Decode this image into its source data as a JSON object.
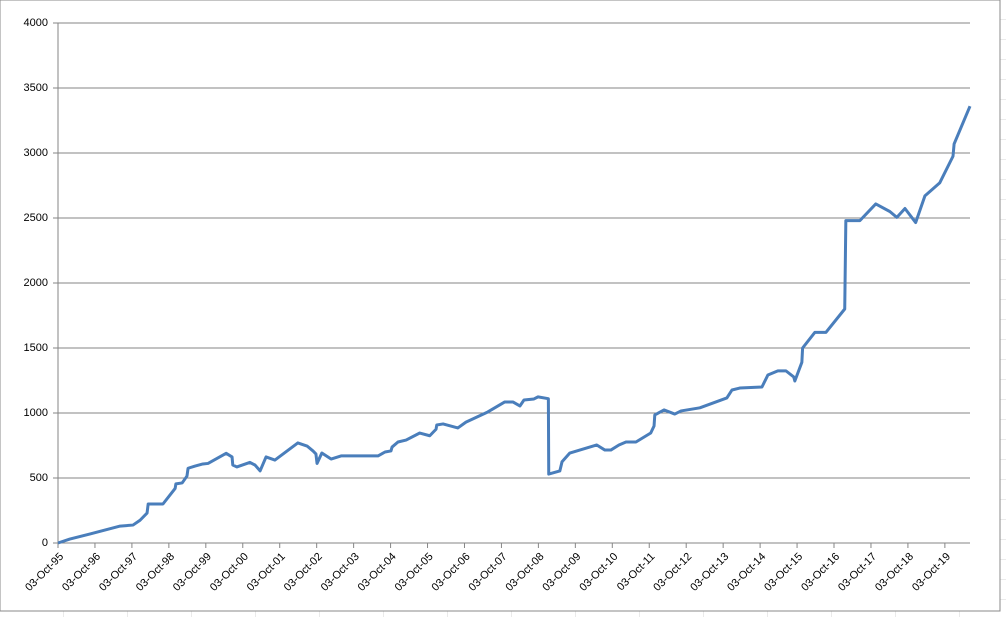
{
  "chart_data": {
    "type": "line",
    "x": [
      1995.75,
      1996.07,
      1996.62,
      1997.43,
      1997.78,
      1997.97,
      1998.16,
      1998.19,
      1998.24,
      1998.59,
      1998.92,
      1998.94,
      1999.11,
      1999.24,
      1999.27,
      1999.46,
      1999.67,
      1999.81,
      2000.3,
      2000.46,
      2000.48,
      2000.59,
      2000.94,
      2001.08,
      2001.22,
      2001.38,
      2001.62,
      2002.24,
      2002.49,
      2002.65,
      2002.73,
      2002.76,
      2002.89,
      2003.14,
      2003.41,
      2004.41,
      2004.6,
      2004.76,
      2004.79,
      2004.95,
      2005.17,
      2005.54,
      2005.81,
      2005.98,
      2006.0,
      2006.17,
      2006.57,
      2006.79,
      2007.38,
      2007.84,
      2008.06,
      2008.25,
      2008.36,
      2008.63,
      2008.74,
      2009.02,
      2009.03,
      2009.33,
      2009.39,
      2009.6,
      2010.33,
      2010.55,
      2010.71,
      2010.93,
      2011.12,
      2011.39,
      2011.79,
      2011.88,
      2011.9,
      2012.15,
      2012.44,
      2012.61,
      2013.12,
      2013.85,
      2013.99,
      2014.2,
      2014.8,
      2014.96,
      2015.23,
      2015.45,
      2015.66,
      2015.69,
      2015.88,
      2015.9,
      2016.23,
      2016.53,
      2017.04,
      2017.07,
      2017.45,
      2017.88,
      2018.26,
      2018.45,
      2018.67,
      2018.96,
      2019.21,
      2019.61,
      2019.97,
      2020.0,
      2020.43
    ],
    "series": [
      {
        "color": "#4a7ebb",
        "values": [
          0,
          30,
          70,
          130,
          138,
          175,
          230,
          300,
          300,
          300,
          420,
          455,
          462,
          515,
          575,
          592,
          608,
          612,
          690,
          662,
          600,
          585,
          620,
          600,
          555,
          662,
          638,
          770,
          746,
          708,
          685,
          612,
          692,
          646,
          670,
          670,
          700,
          708,
          738,
          777,
          792,
          846,
          825,
          875,
          908,
          916,
          885,
          930,
          1008,
          1085,
          1085,
          1054,
          1100,
          1108,
          1124,
          1110,
          530,
          554,
          625,
          692,
          754,
          715,
          715,
          754,
          777,
          777,
          846,
          900,
          985,
          1024,
          992,
          1016,
          1040,
          1116,
          1177,
          1192,
          1200,
          1292,
          1324,
          1324,
          1277,
          1246,
          1390,
          1500,
          1620,
          1620,
          1800,
          2480,
          2480,
          2608,
          2550,
          2505,
          2573,
          2465,
          2670,
          2770,
          2975,
          3070,
          3360
        ]
      }
    ],
    "xlim": [
      1995.75,
      2020.43
    ],
    "xticks": [
      {
        "value": 1995.75,
        "label": "03-Oct-95"
      },
      {
        "value": 1996.75,
        "label": "03-Oct-96"
      },
      {
        "value": 1997.75,
        "label": "03-Oct-97"
      },
      {
        "value": 1998.75,
        "label": "03-Oct-98"
      },
      {
        "value": 1999.75,
        "label": "03-Oct-99"
      },
      {
        "value": 2000.75,
        "label": "03-Oct-00"
      },
      {
        "value": 2001.75,
        "label": "03-Oct-01"
      },
      {
        "value": 2002.75,
        "label": "03-Oct-02"
      },
      {
        "value": 2003.75,
        "label": "03-Oct-03"
      },
      {
        "value": 2004.75,
        "label": "03-Oct-04"
      },
      {
        "value": 2005.75,
        "label": "03-Oct-05"
      },
      {
        "value": 2006.75,
        "label": "03-Oct-06"
      },
      {
        "value": 2007.75,
        "label": "03-Oct-07"
      },
      {
        "value": 2008.75,
        "label": "03-Oct-08"
      },
      {
        "value": 2009.75,
        "label": "03-Oct-09"
      },
      {
        "value": 2010.75,
        "label": "03-Oct-10"
      },
      {
        "value": 2011.75,
        "label": "03-Oct-11"
      },
      {
        "value": 2012.75,
        "label": "03-Oct-12"
      },
      {
        "value": 2013.75,
        "label": "03-Oct-13"
      },
      {
        "value": 2014.75,
        "label": "03-Oct-14"
      },
      {
        "value": 2015.75,
        "label": "03-Oct-15"
      },
      {
        "value": 2016.75,
        "label": "03-Oct-16"
      },
      {
        "value": 2017.75,
        "label": "03-Oct-17"
      },
      {
        "value": 2018.75,
        "label": "03-Oct-18"
      },
      {
        "value": 2019.75,
        "label": "03-Oct-19"
      }
    ],
    "ylim": [
      0,
      4000
    ],
    "yticks": [
      0,
      500,
      1000,
      1500,
      2000,
      2500,
      3000,
      3500,
      4000
    ],
    "grid": true
  }
}
